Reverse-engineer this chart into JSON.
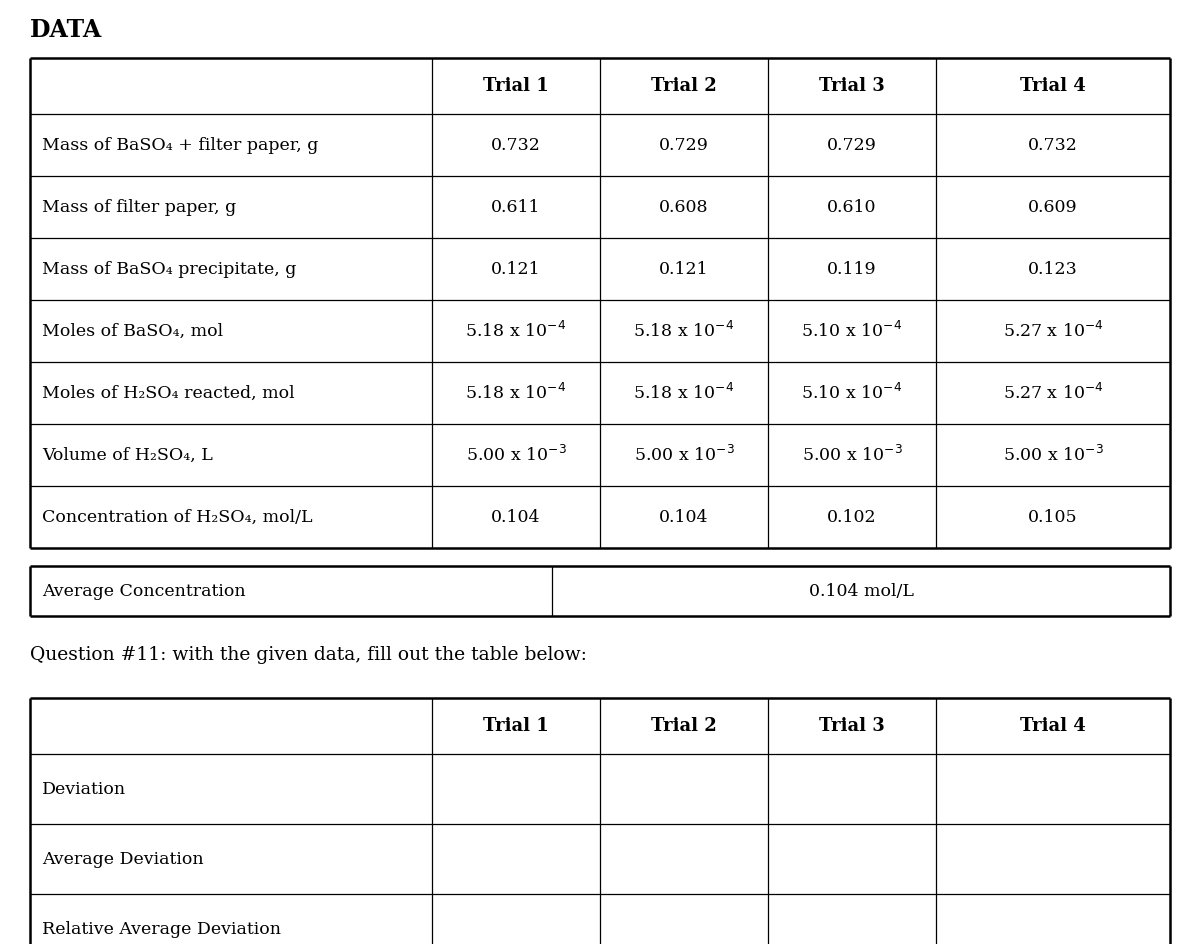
{
  "title": "DATA",
  "title_fontsize": 17,
  "background_color": "#ffffff",
  "text_color": "#000000",
  "font_family": "serif",
  "main_table": {
    "col_headers": [
      "",
      "Trial 1",
      "Trial 2",
      "Trial 3",
      "Trial 4"
    ],
    "rows": [
      [
        "Mass of BaSO₄ + filter paper, g",
        "0.732",
        "0.729",
        "0.729",
        "0.732"
      ],
      [
        "Mass of filter paper, g",
        "0.611",
        "0.608",
        "0.610",
        "0.609"
      ],
      [
        "Mass of BaSO₄ precipitate, g",
        "0.121",
        "0.121",
        "0.119",
        "0.123"
      ],
      [
        "Moles of BaSO₄, mol",
        "5.18 x 10$^{-4}$",
        "5.18 x 10$^{-4}$",
        "5.10 x 10$^{-4}$",
        "5.27 x 10$^{-4}$"
      ],
      [
        "Moles of H₂SO₄ reacted, mol",
        "5.18 x 10$^{-4}$",
        "5.18 x 10$^{-4}$",
        "5.10 x 10$^{-4}$",
        "5.27 x 10$^{-4}$"
      ],
      [
        "Volume of H₂SO₄, L",
        "5.00 x 10$^{-3}$",
        "5.00 x 10$^{-3}$",
        "5.00 x 10$^{-3}$",
        "5.00 x 10$^{-3}$"
      ],
      [
        "Concentration of H₂SO₄, mol/L",
        "0.104",
        "0.104",
        "0.102",
        "0.105"
      ]
    ]
  },
  "avg_table": {
    "label": "Average Concentration",
    "value": "0.104 mol/L"
  },
  "question_text": "Question #11: with the given data, fill out the table below:",
  "second_table": {
    "col_headers": [
      "",
      "Trial 1",
      "Trial 2",
      "Trial 3",
      "Trial 4"
    ],
    "rows": [
      [
        "Deviation",
        "",
        "",
        "",
        ""
      ],
      [
        "Average Deviation",
        "",
        "",
        "",
        ""
      ],
      [
        "Relative Average Deviation",
        "",
        "",
        "",
        ""
      ]
    ]
  }
}
